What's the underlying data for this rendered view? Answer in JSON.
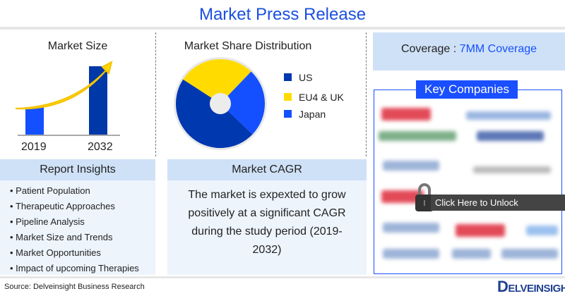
{
  "title": "Market Press Release",
  "market_size": {
    "title": "Market Size",
    "years": [
      "2019",
      "2032"
    ],
    "colors": [
      "#1450ff",
      "#0038a8"
    ]
  },
  "market_share": {
    "title": "Market Share Distribution",
    "legend": [
      {
        "label": "US",
        "color": "#0038b0",
        "share": 47
      },
      {
        "label": "EU4 & UK",
        "color": "#ffdb00",
        "share": 28
      },
      {
        "label": "Japan",
        "color": "#1450ff",
        "share": 25
      }
    ]
  },
  "coverage": {
    "label": "Coverage :",
    "value": "7MM Coverage"
  },
  "key_companies": {
    "title": "Key Companies",
    "unlock_label": "Click Here to Unlock"
  },
  "report_insights": {
    "title": "Report Insights",
    "items": [
      "Patient Population",
      "Therapeutic Approaches",
      "Pipeline Analysis",
      "Market Size and Trends",
      "Market Opportunities",
      "Impact of upcoming Therapies"
    ]
  },
  "market_cagr": {
    "title": "Market CAGR",
    "text": "The market is expexted to grow positively at a significant CAGR during the study period (2019-2032)"
  },
  "footer": {
    "source": "Source: Delveinsight Business Research",
    "logo": "DELVEINSIGHT"
  }
}
